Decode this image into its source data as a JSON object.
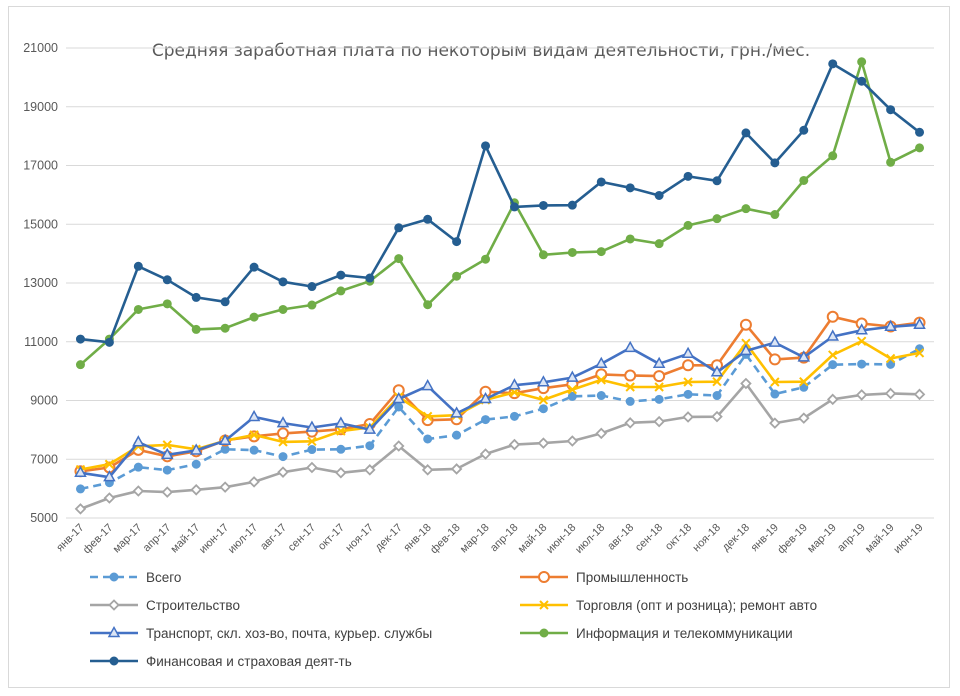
{
  "chart_data": {
    "type": "line",
    "title": "Средняя заработная плата по некоторым видам деятельности, грн./мес.",
    "ylim": [
      5000,
      21000
    ],
    "yticks": [
      5000,
      7000,
      9000,
      11000,
      13000,
      15000,
      17000,
      19000,
      21000
    ],
    "grid": "horizontal",
    "legend_position": "bottom",
    "categories": [
      "янв-17",
      "фев-17",
      "мар-17",
      "апр-17",
      "май-17",
      "июн-17",
      "июл-17",
      "авг-17",
      "сен-17",
      "окт-17",
      "ноя-17",
      "дек-17",
      "янв-18",
      "фев-18",
      "мар-18",
      "апр-18",
      "май-18",
      "июн-18",
      "июл-18",
      "авг-18",
      "сен-18",
      "окт-18",
      "ноя-18",
      "дек-18",
      "янв-19",
      "фев-19",
      "мар-19",
      "апр-19",
      "май-19",
      "июн-19"
    ],
    "series": [
      {
        "name": "Всего",
        "color": "#5b9bd5",
        "marker": "circle",
        "dash": true,
        "values": [
          5990,
          6200,
          6730,
          6630,
          6830,
          7340,
          7310,
          7090,
          7330,
          7340,
          7460,
          8780,
          7690,
          7820,
          8350,
          8460,
          8720,
          9140,
          9170,
          8970,
          9040,
          9210,
          9170,
          10570,
          9220,
          9450,
          10220,
          10240,
          10230,
          10760
        ]
      },
      {
        "name": "Промышленность",
        "color": "#ed7d31",
        "marker": "ring",
        "values": [
          6590,
          6720,
          7320,
          7100,
          7270,
          7640,
          7780,
          7880,
          7940,
          8020,
          8200,
          9350,
          8330,
          8360,
          9300,
          9250,
          9420,
          9550,
          9890,
          9850,
          9830,
          10200,
          10200,
          11580,
          10400,
          10460,
          11850,
          11620,
          11520,
          11650
        ]
      },
      {
        "name": "Строительство",
        "color": "#a5a5a5",
        "marker": "diamond",
        "values": [
          5310,
          5680,
          5920,
          5880,
          5960,
          6050,
          6230,
          6560,
          6720,
          6540,
          6640,
          7450,
          6640,
          6670,
          7180,
          7500,
          7550,
          7620,
          7880,
          8240,
          8280,
          8440,
          8450,
          9580,
          8230,
          8400,
          9040,
          9190,
          9240,
          9210
        ]
      },
      {
        "name": "Торговля (опт и розница); ремонт авто",
        "color": "#ffc000",
        "marker": "cross",
        "values": [
          6650,
          6830,
          7440,
          7490,
          7340,
          7630,
          7830,
          7590,
          7610,
          7960,
          8080,
          9120,
          8460,
          8500,
          9020,
          9280,
          9020,
          9370,
          9700,
          9460,
          9460,
          9630,
          9640,
          10950,
          9630,
          9640,
          10550,
          11020,
          10430,
          10620
        ]
      },
      {
        "name": "Транспорт, скл. хоз-во, почта, курьер. службы",
        "color": "#4472c4",
        "marker": "triangle",
        "values": [
          6540,
          6390,
          7580,
          7150,
          7300,
          7630,
          8440,
          8230,
          8080,
          8220,
          8010,
          9050,
          9490,
          8560,
          9050,
          9520,
          9620,
          9780,
          10250,
          10790,
          10250,
          10590,
          9960,
          10690,
          10970,
          10470,
          11180,
          11390,
          11510,
          11580
        ]
      },
      {
        "name": "Информация и телекоммуникации",
        "color": "#70ad47",
        "marker": "circle",
        "values": [
          10220,
          11090,
          12100,
          12290,
          11420,
          11460,
          11840,
          12100,
          12250,
          12730,
          13060,
          13830,
          12260,
          13230,
          13810,
          15730,
          13960,
          14040,
          14070,
          14500,
          14340,
          14960,
          15190,
          15530,
          15330,
          16490,
          17330,
          20530,
          17110,
          17600
        ]
      },
      {
        "name": "Финансовая и страховая деят-ть",
        "color": "#255e91",
        "marker": "circle",
        "values": [
          11090,
          10980,
          13570,
          13110,
          12510,
          12360,
          13540,
          13040,
          12880,
          13270,
          13170,
          14880,
          15170,
          14410,
          17670,
          15590,
          15640,
          15650,
          16440,
          16240,
          15980,
          16630,
          16480,
          18110,
          17090,
          18200,
          20460,
          19870,
          18900,
          18130
        ]
      }
    ]
  }
}
